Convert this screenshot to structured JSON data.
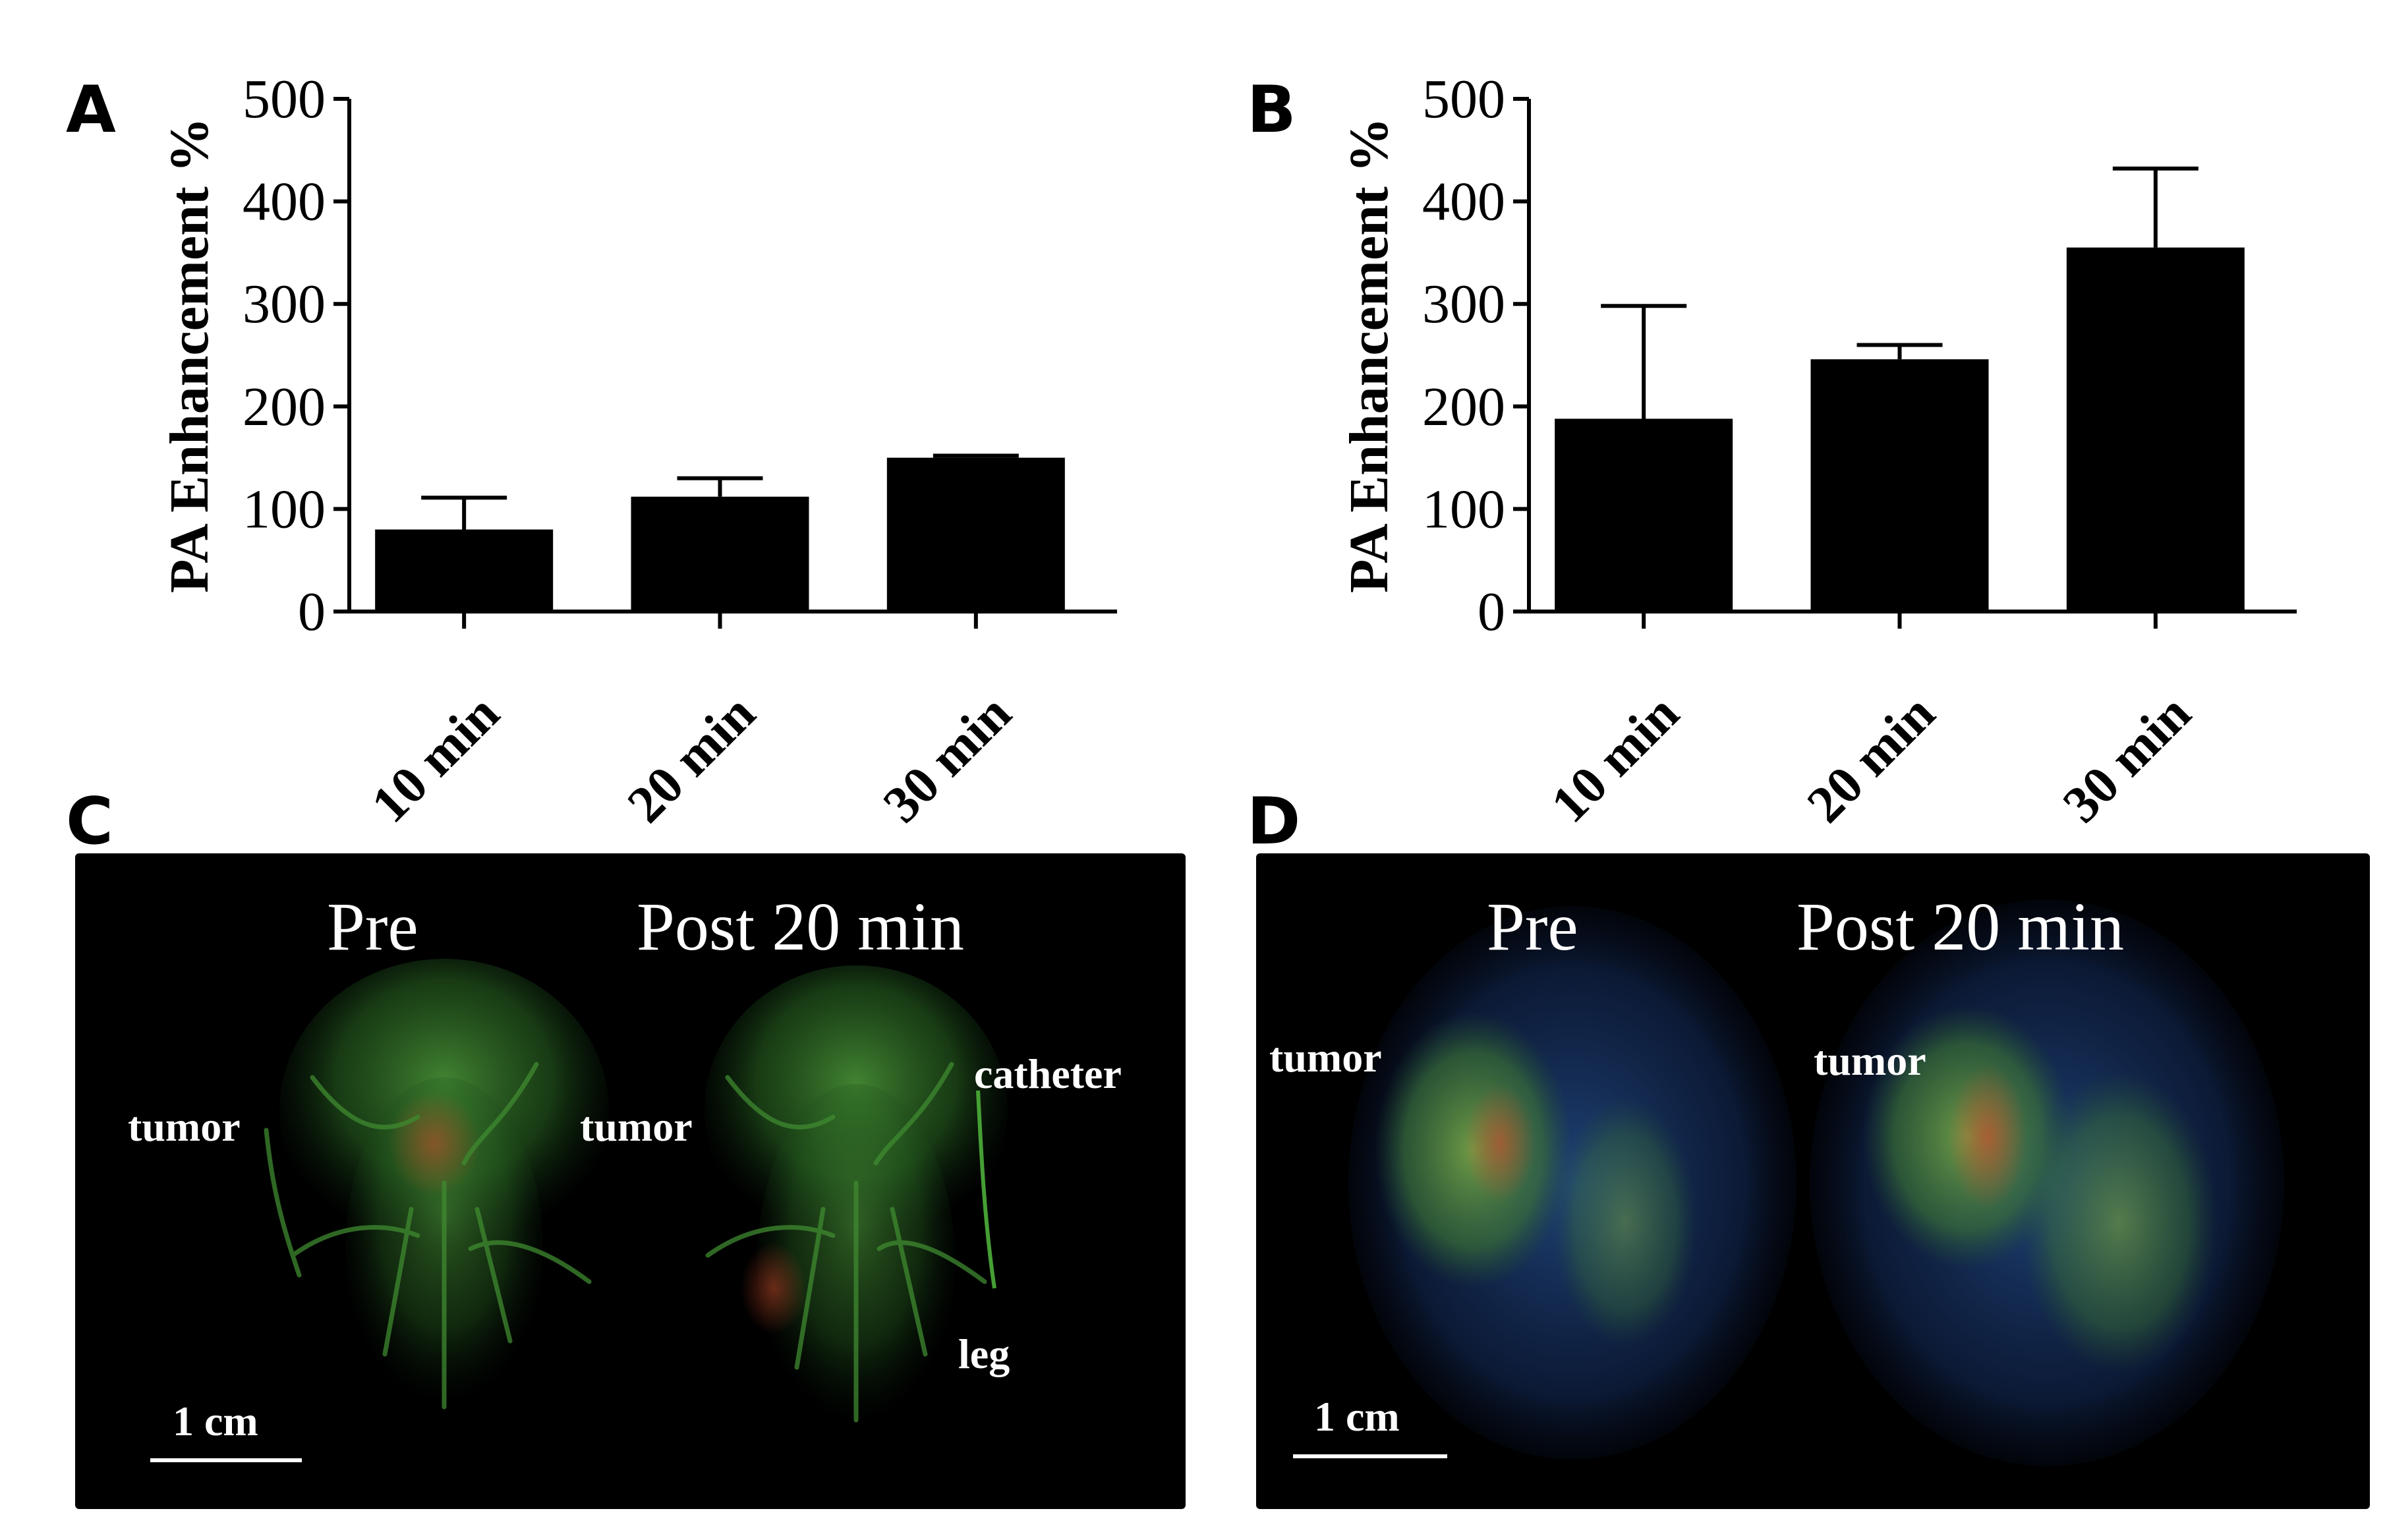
{
  "panels": {
    "a": "A",
    "b": "B",
    "c": "C",
    "d": "D"
  },
  "chart_data": [
    {
      "type": "bar",
      "panel": "A",
      "categories": [
        "10 min",
        "20 min",
        "30 min"
      ],
      "values": [
        80,
        112,
        150
      ],
      "error_upper": [
        111,
        130,
        152
      ],
      "ylabel": "PA Enhancement %",
      "ylim": [
        0,
        500
      ],
      "yticks": [
        0,
        100,
        200,
        300,
        400,
        500
      ],
      "bar_color": "#000000"
    },
    {
      "type": "bar",
      "panel": "B",
      "categories": [
        "10 min",
        "20 min",
        "30 min"
      ],
      "values": [
        188,
        246,
        355
      ],
      "error_upper": [
        298,
        260,
        432
      ],
      "ylabel": "PA Enhancement %",
      "ylim": [
        0,
        500
      ],
      "yticks": [
        0,
        100,
        200,
        300,
        400,
        500
      ],
      "bar_color": "#000000"
    }
  ],
  "image_c": {
    "pre": "Pre",
    "post": "Post 20 min",
    "tumor_pre": "tumor",
    "tumor_post": "tumor",
    "catheter": "catheter",
    "leg": "leg",
    "scale": "1 cm"
  },
  "image_d": {
    "pre": "Pre",
    "post": "Post 20 min",
    "tumor_pre": "tumor",
    "tumor_post": "tumor",
    "scale": "1 cm"
  },
  "colors": {
    "vessel_green": "#3c8a2e",
    "hot_red": "#c0402a",
    "blue_noise": "#1c3a78"
  }
}
